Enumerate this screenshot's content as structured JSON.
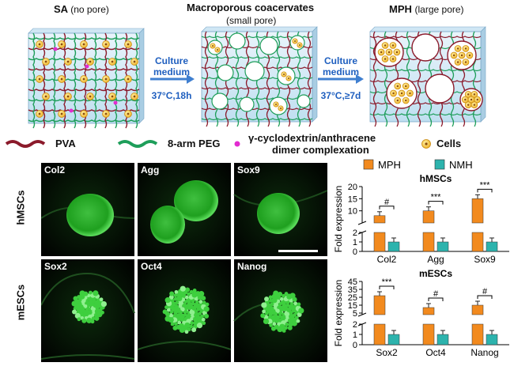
{
  "top": {
    "sa_title": "SA",
    "sa_sub": "(no pore)",
    "macro_title": "Macroporous coacervates",
    "macro_sub": "(small pore)",
    "mph_title": "MPH",
    "mph_sub": "(large pore)",
    "arrow1": [
      "Culture",
      "medium",
      "37°C,18h"
    ],
    "arrow2": [
      "Culture",
      "medium",
      "37°C,≥7d"
    ]
  },
  "legend": {
    "pva": "PVA",
    "peg": "8-arm PEG",
    "complex_line1": "γ-cyclodextrin/anthracene",
    "complex_line2": "dimer complexation",
    "cells": "Cells"
  },
  "micro": {
    "row1_label": "hMSCs",
    "row2_label": "mESCs",
    "row1": [
      "Col2",
      "Agg",
      "Sox9"
    ],
    "row2": [
      "Sox2",
      "Oct4",
      "Nanog"
    ]
  },
  "chart_data": [
    {
      "type": "bar",
      "title": "hMSCs",
      "ylabel": "Fold expression",
      "categories": [
        "Col2",
        "Agg",
        "Sox9"
      ],
      "series": [
        {
          "name": "MPH",
          "values": [
            8,
            10,
            15
          ]
        },
        {
          "name": "NMH",
          "values": [
            1,
            1,
            1
          ]
        }
      ],
      "ytick_labels": [
        "0",
        "1",
        "2",
        "10",
        "15",
        "20"
      ],
      "broken_axis": true,
      "significance": [
        "#",
        "***",
        "***"
      ],
      "colors": {
        "MPH": "#f28a1e",
        "NMH": "#2db3ad"
      }
    },
    {
      "type": "bar",
      "title": "mESCs",
      "ylabel": "Fold expression",
      "categories": [
        "Sox2",
        "Oct4",
        "Nanog"
      ],
      "series": [
        {
          "name": "MPH",
          "values": [
            27,
            12,
            15
          ]
        },
        {
          "name": "NMH",
          "values": [
            1,
            1,
            1
          ]
        }
      ],
      "ytick_labels": [
        "0",
        "1",
        "2",
        "5",
        "15",
        "25",
        "35",
        "45"
      ],
      "broken_axis": true,
      "significance": [
        "***",
        "#",
        "#"
      ],
      "colors": {
        "MPH": "#f28a1e",
        "NMH": "#2db3ad"
      }
    }
  ]
}
